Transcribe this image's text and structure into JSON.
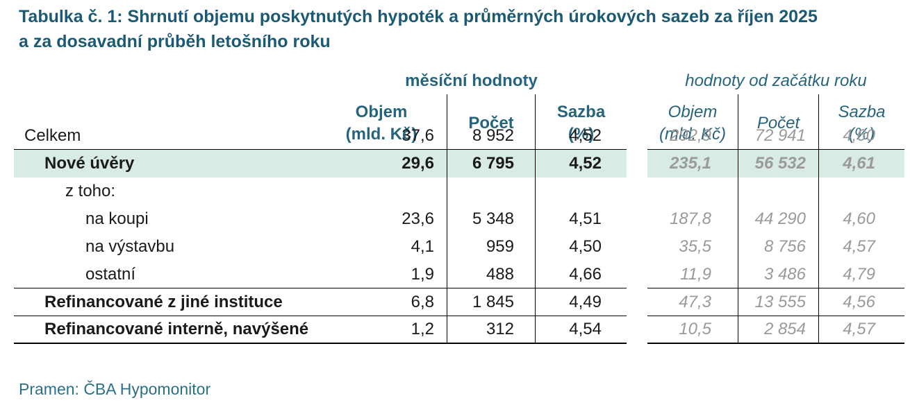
{
  "title": {
    "line1": "Tabulka č. 1: Shrnutí objemu poskytnutých hypoték a průměrných úrokových sazeb za říjen 2025",
    "line2": "a za dosavadní průběh letošního roku"
  },
  "source": "Pramen: ČBA Hypomonitor",
  "colors": {
    "title_teal": "#1c5a74",
    "header_teal": "#26647e",
    "source_teal": "#2a7088",
    "highlight_row_bg": "#d9ece3",
    "ytd_gray": "#9a9a9a",
    "body_text": "#1a1a1a",
    "rule_black": "#000000"
  },
  "chart_data": {
    "type": "table",
    "title": "Tabulka č. 1: Shrnutí objemu poskytnutých hypoték a průměrných úrokových sazeb za říjen 2025 a za dosavadní průběh letošního roku",
    "groups": {
      "monthly": "měsíční hodnoty",
      "ytd": "hodnoty od začátku roku"
    },
    "columns": {
      "volume": "Objem",
      "volume_unit": "(mld. Kč)",
      "count": "Počet",
      "rate": "Sazba",
      "rate_unit": "(%)"
    },
    "rows": [
      {
        "label": "Celkem",
        "monthly": {
          "volume": "37,6",
          "count": "8 952",
          "rate": "4,52"
        },
        "ytd": {
          "volume": "292,9",
          "count": "72 941",
          "rate": "4,60"
        }
      },
      {
        "label": "Nové úvěry",
        "monthly": {
          "volume": "29,6",
          "count": "6 795",
          "rate": "4,52"
        },
        "ytd": {
          "volume": "235,1",
          "count": "56 532",
          "rate": "4,61"
        }
      },
      {
        "label": "z toho:",
        "monthly": {
          "volume": "",
          "count": "",
          "rate": ""
        },
        "ytd": {
          "volume": "",
          "count": "",
          "rate": ""
        }
      },
      {
        "label": "na koupi",
        "monthly": {
          "volume": "23,6",
          "count": "5 348",
          "rate": "4,51"
        },
        "ytd": {
          "volume": "187,8",
          "count": "44 290",
          "rate": "4,60"
        }
      },
      {
        "label": "na výstavbu",
        "monthly": {
          "volume": "4,1",
          "count": "959",
          "rate": "4,50"
        },
        "ytd": {
          "volume": "35,5",
          "count": "8 756",
          "rate": "4,57"
        }
      },
      {
        "label": "ostatní",
        "monthly": {
          "volume": "1,9",
          "count": "488",
          "rate": "4,66"
        },
        "ytd": {
          "volume": "11,9",
          "count": "3 486",
          "rate": "4,79"
        }
      },
      {
        "label": "Refinancované z jiné instituce",
        "monthly": {
          "volume": "6,8",
          "count": "1 845",
          "rate": "4,49"
        },
        "ytd": {
          "volume": "47,3",
          "count": "13 555",
          "rate": "4,56"
        }
      },
      {
        "label": "Refinancované interně, navýšené",
        "monthly": {
          "volume": "1,2",
          "count": "312",
          "rate": "4,54"
        },
        "ytd": {
          "volume": "10,5",
          "count": "2 854",
          "rate": "4,57"
        }
      }
    ]
  }
}
